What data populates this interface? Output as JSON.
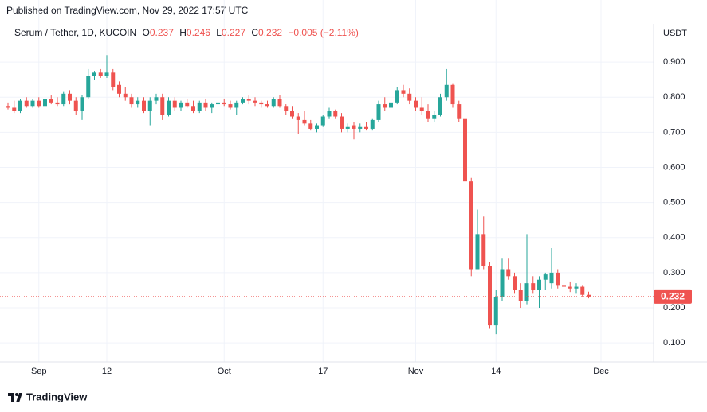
{
  "chart_data": {
    "type": "candlestick",
    "published": "Published on TradingView.com, Nov 29, 2022 17:57 UTC",
    "symbol": "Serum / Tether, 1D, KUCOIN",
    "ohlc_labels": [
      "O",
      "H",
      "L",
      "C"
    ],
    "change": "−0.005 (−2.11%)",
    "currency": "USDT",
    "brand": "TradingView",
    "up_color": "#26a69a",
    "down_color": "#ef5350",
    "grid": true,
    "ylim": [
      0.046,
      1.009
    ],
    "yticks": [
      {
        "value": 0.1,
        "label": "0.100"
      },
      {
        "value": 0.2,
        "label": "0.200"
      },
      {
        "value": 0.3,
        "label": "0.300"
      },
      {
        "value": 0.4,
        "label": "0.400"
      },
      {
        "value": 0.5,
        "label": "0.500"
      },
      {
        "value": 0.6,
        "label": "0.600"
      },
      {
        "value": 0.7,
        "label": "0.700"
      },
      {
        "value": 0.8,
        "label": "0.800"
      },
      {
        "value": 0.9,
        "label": "0.900"
      }
    ],
    "categories": [
      null,
      null,
      null,
      null,
      null,
      "Sep",
      null,
      null,
      null,
      null,
      null,
      null,
      null,
      null,
      null,
      null,
      "12",
      null,
      null,
      null,
      null,
      null,
      null,
      null,
      null,
      null,
      null,
      null,
      null,
      null,
      null,
      null,
      null,
      null,
      null,
      "Oct",
      null,
      null,
      null,
      null,
      null,
      null,
      null,
      null,
      null,
      null,
      null,
      null,
      null,
      null,
      null,
      "17",
      null,
      null,
      null,
      null,
      null,
      null,
      null,
      null,
      null,
      null,
      null,
      null,
      null,
      null,
      "Nov",
      null,
      null,
      null,
      null,
      null,
      null,
      null,
      null,
      null,
      null,
      null,
      null,
      "14",
      null,
      null,
      null,
      null,
      null,
      null,
      null,
      null,
      null,
      null,
      null,
      null,
      null,
      null,
      null,
      null,
      "Dec"
    ],
    "open": [
      0.775,
      0.77,
      0.76,
      0.79,
      0.775,
      0.79,
      0.775,
      0.795,
      0.785,
      0.78,
      0.81,
      0.79,
      0.76,
      0.8,
      0.86,
      0.87,
      0.86,
      0.87,
      0.835,
      0.81,
      0.8,
      0.78,
      0.79,
      0.76,
      0.79,
      0.8,
      0.75,
      0.79,
      0.77,
      0.785,
      0.775,
      0.76,
      0.785,
      0.77,
      0.78,
      0.785,
      0.78,
      0.77,
      0.785,
      0.795,
      0.79,
      0.785,
      0.78,
      0.775,
      0.795,
      0.775,
      0.76,
      0.745,
      0.735,
      0.725,
      0.71,
      0.72,
      0.745,
      0.76,
      0.745,
      0.71,
      0.72,
      0.71,
      0.715,
      0.71,
      0.735,
      0.78,
      0.77,
      0.785,
      0.82,
      0.81,
      0.79,
      0.77,
      0.76,
      0.74,
      0.75,
      0.8,
      0.835,
      0.78,
      0.74,
      0.56,
      0.31,
      0.41,
      0.32,
      0.15,
      0.23,
      0.31,
      0.29,
      0.25,
      0.22,
      0.27,
      0.25,
      0.28,
      0.27,
      0.3,
      0.265,
      0.26,
      0.255,
      0.26,
      0.237,
      null,
      null
    ],
    "high": [
      0.785,
      0.79,
      0.795,
      0.8,
      0.795,
      0.8,
      0.8,
      0.805,
      0.8,
      0.815,
      0.82,
      0.8,
      0.805,
      0.88,
      0.875,
      0.88,
      0.92,
      0.88,
      0.845,
      0.83,
      0.81,
      0.8,
      0.8,
      0.8,
      0.81,
      0.81,
      0.8,
      0.8,
      0.79,
      0.795,
      0.79,
      0.79,
      0.795,
      0.785,
      0.79,
      0.795,
      0.79,
      0.79,
      0.8,
      0.805,
      0.8,
      0.79,
      0.79,
      0.8,
      0.805,
      0.78,
      0.775,
      0.755,
      0.76,
      0.735,
      0.725,
      0.75,
      0.77,
      0.765,
      0.755,
      0.725,
      0.73,
      0.725,
      0.73,
      0.74,
      0.79,
      0.8,
      0.79,
      0.83,
      0.835,
      0.825,
      0.8,
      0.8,
      0.78,
      0.76,
      0.81,
      0.88,
      0.84,
      0.79,
      0.745,
      0.57,
      0.48,
      0.46,
      0.33,
      0.25,
      0.34,
      0.34,
      0.3,
      0.27,
      0.41,
      0.29,
      0.29,
      0.3,
      0.37,
      0.31,
      0.28,
      0.275,
      0.27,
      0.265,
      0.246,
      null,
      null
    ],
    "low": [
      0.765,
      0.755,
      0.755,
      0.77,
      0.77,
      0.77,
      0.765,
      0.78,
      0.775,
      0.775,
      0.78,
      0.75,
      0.735,
      0.795,
      0.85,
      0.855,
      0.855,
      0.82,
      0.8,
      0.79,
      0.77,
      0.77,
      0.755,
      0.72,
      0.78,
      0.735,
      0.745,
      0.76,
      0.76,
      0.77,
      0.755,
      0.755,
      0.76,
      0.755,
      0.77,
      0.775,
      0.765,
      0.75,
      0.78,
      0.78,
      0.775,
      0.77,
      0.77,
      0.77,
      0.77,
      0.75,
      0.74,
      0.695,
      0.72,
      0.705,
      0.7,
      0.715,
      0.74,
      0.74,
      0.7,
      0.7,
      0.68,
      0.7,
      0.705,
      0.705,
      0.73,
      0.76,
      0.76,
      0.78,
      0.8,
      0.78,
      0.76,
      0.75,
      0.73,
      0.73,
      0.745,
      0.79,
      0.77,
      0.73,
      0.51,
      0.29,
      0.31,
      0.31,
      0.14,
      0.125,
      0.22,
      0.28,
      0.24,
      0.2,
      0.21,
      0.24,
      0.2,
      0.25,
      0.255,
      0.255,
      0.25,
      0.245,
      0.24,
      0.23,
      0.227,
      null,
      null
    ],
    "close": [
      0.77,
      0.76,
      0.79,
      0.775,
      0.79,
      0.775,
      0.795,
      0.785,
      0.78,
      0.81,
      0.79,
      0.76,
      0.8,
      0.86,
      0.87,
      0.86,
      0.87,
      0.83,
      0.81,
      0.8,
      0.78,
      0.79,
      0.76,
      0.79,
      0.8,
      0.75,
      0.79,
      0.77,
      0.785,
      0.775,
      0.76,
      0.785,
      0.77,
      0.78,
      0.785,
      0.78,
      0.77,
      0.785,
      0.795,
      0.79,
      0.785,
      0.78,
      0.775,
      0.795,
      0.775,
      0.76,
      0.745,
      0.735,
      0.725,
      0.71,
      0.72,
      0.745,
      0.76,
      0.745,
      0.71,
      0.715,
      0.71,
      0.715,
      0.71,
      0.735,
      0.78,
      0.77,
      0.785,
      0.82,
      0.81,
      0.79,
      0.77,
      0.76,
      0.74,
      0.75,
      0.8,
      0.835,
      0.78,
      0.74,
      0.56,
      0.31,
      0.41,
      0.32,
      0.15,
      0.23,
      0.31,
      0.29,
      0.25,
      0.22,
      0.27,
      0.25,
      0.28,
      0.295,
      0.3,
      0.265,
      0.26,
      0.255,
      0.26,
      0.237,
      0.232,
      null,
      null
    ]
  }
}
